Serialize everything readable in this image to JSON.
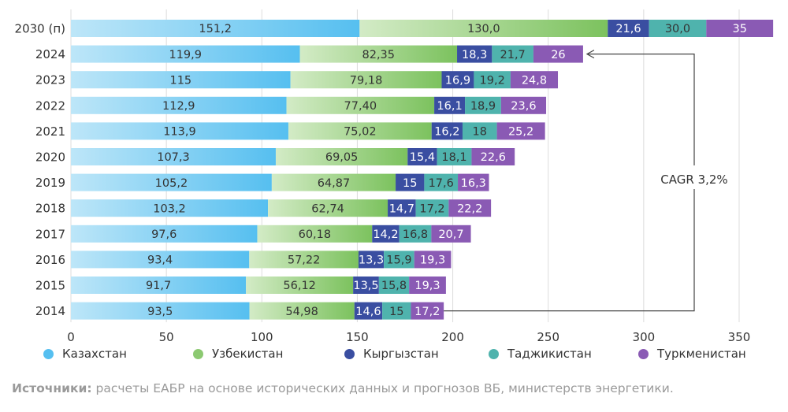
{
  "chart_data": {
    "type": "bar",
    "orientation": "horizontal",
    "stacked": true,
    "categories": [
      "2030 (п)",
      "2024",
      "2023",
      "2022",
      "2021",
      "2020",
      "2019",
      "2018",
      "2017",
      "2016",
      "2015",
      "2014"
    ],
    "series": [
      {
        "name": "Казахстан",
        "color": "#56bff0",
        "values": [
          151.2,
          119.9,
          115,
          112.9,
          113.9,
          107.3,
          105.2,
          103.2,
          97.6,
          93.4,
          91.7,
          93.5
        ],
        "labels": [
          "151,2",
          "119,9",
          "115",
          "112,9",
          "113,9",
          "107,3",
          "105,2",
          "103,2",
          "97,6",
          "93,4",
          "91,7",
          "93,5"
        ]
      },
      {
        "name": "Узбекистан",
        "color": "#8cc971",
        "values": [
          130.0,
          82.35,
          79.18,
          77.4,
          75.02,
          69.05,
          64.87,
          62.74,
          60.18,
          57.22,
          56.12,
          54.98
        ],
        "labels": [
          "130,0",
          "82,35",
          "79,18",
          "77,40",
          "75,02",
          "69,05",
          "64,87",
          "62,74",
          "60,18",
          "57,22",
          "56,12",
          "54,98"
        ]
      },
      {
        "name": "Кыргызстан",
        "color": "#3a4ea1",
        "values": [
          21.6,
          18.3,
          16.9,
          16.1,
          16.2,
          15.4,
          15,
          14.7,
          14.2,
          13.3,
          13.5,
          14.6
        ],
        "labels": [
          "21,6",
          "18,3",
          "16,9",
          "16,1",
          "16,2",
          "15,4",
          "15",
          "14,7",
          "14,2",
          "13,3",
          "13,5",
          "14,6"
        ]
      },
      {
        "name": "Таджикистан",
        "color": "#4fb3ad",
        "values": [
          30.0,
          21.7,
          19.2,
          18.9,
          18,
          18.1,
          17.6,
          17.2,
          16.8,
          15.9,
          15.8,
          15
        ],
        "labels": [
          "30,0",
          "21,7",
          "19,2",
          "18,9",
          "18",
          "18,1",
          "17,6",
          "17,2",
          "16,8",
          "15,9",
          "15,8",
          "15"
        ]
      },
      {
        "name": "Туркменистан",
        "color": "#8a5ab4",
        "values": [
          35,
          26,
          24.8,
          23.6,
          25.2,
          22.6,
          16.3,
          22.2,
          20.7,
          19.3,
          19.3,
          17.2
        ],
        "labels": [
          "35",
          "26",
          "24,8",
          "23,6",
          "25,2",
          "22,6",
          "16,3",
          "22,2",
          "20,7",
          "19,3",
          "19,3",
          "17,2"
        ]
      }
    ],
    "xlim": [
      0,
      350
    ],
    "xticks": [
      0,
      50,
      100,
      150,
      200,
      250,
      300,
      350
    ],
    "grid": true,
    "annotation": {
      "text": "CAGR 3,2%",
      "from_category": "2014",
      "to_category": "2024"
    },
    "legend_position": "bottom"
  },
  "source": {
    "label": "Источники:",
    "text": " расчеты ЕАБР на основе исторических данных и прогнозов ВБ, министерств энергетики."
  }
}
